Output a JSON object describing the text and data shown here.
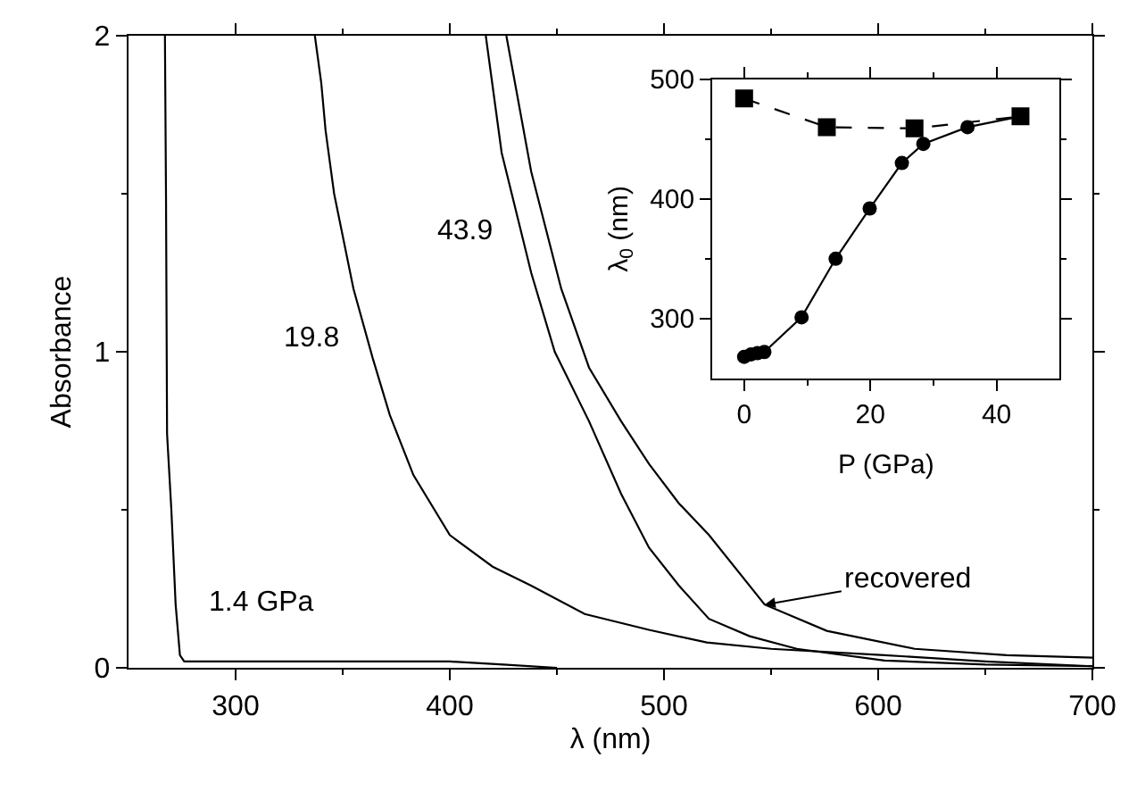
{
  "chart_data": [
    {
      "type": "line",
      "annotations": [
        {
          "text": "recovered",
          "x": 547,
          "y": 0.2
        }
      ],
      "xlabel": "λ (nm)",
      "ylabel": "Absorbance",
      "xlim": [
        250,
        700
      ],
      "xticks": [
        300,
        400,
        500,
        600,
        700
      ],
      "ylim": [
        0,
        2
      ],
      "yticks": [
        0,
        1,
        2
      ],
      "grid": false,
      "legend": false,
      "marker": "none",
      "line_style": "solid",
      "series": [
        {
          "name": "1.4 GPa",
          "color": "#000000",
          "x": [
            267,
            267.5,
            268,
            270,
            272,
            274,
            276,
            290,
            300,
            325,
            350,
            375,
            400,
            425,
            450
          ],
          "values": [
            2.0,
            1.5,
            0.74,
            0.5,
            0.2,
            0.04,
            0.02,
            0.02,
            0.02,
            0.02,
            0.02,
            0.02,
            0.02,
            0.01,
            0.0
          ]
        },
        {
          "name": "19.8",
          "color": "#000000",
          "x": [
            337,
            340,
            342,
            344,
            346,
            355,
            364,
            372,
            383,
            400,
            420,
            438,
            463,
            493,
            520,
            550,
            603,
            650,
            700
          ],
          "values": [
            2.0,
            1.85,
            1.7,
            1.6,
            1.5,
            1.2,
            0.98,
            0.8,
            0.61,
            0.42,
            0.32,
            0.26,
            0.17,
            0.12,
            0.08,
            0.06,
            0.04,
            0.02,
            0.005
          ]
        },
        {
          "name": "43.9",
          "color": "#000000",
          "x": [
            416.8,
            424.2,
            438,
            449,
            465,
            480,
            493,
            507,
            521,
            540,
            562,
            603,
            650,
            700
          ],
          "values": [
            2.0,
            1.63,
            1.25,
            1.0,
            0.78,
            0.55,
            0.38,
            0.26,
            0.155,
            0.1,
            0.06,
            0.023,
            0.01,
            0.005
          ]
        },
        {
          "color": "#000000",
          "x": [
            426.4,
            438,
            452,
            465,
            480,
            493,
            507,
            521,
            547,
            576,
            617,
            660,
            700
          ],
          "values": [
            2.0,
            1.57,
            1.2,
            0.95,
            0.78,
            0.645,
            0.52,
            0.42,
            0.2,
            0.117,
            0.06,
            0.04,
            0.032
          ]
        }
      ]
    },
    {
      "type": "line",
      "xlabel": "P (GPa)",
      "ylabel": "λ$_{0}$ (nm)",
      "xlim": [
        -5,
        50
      ],
      "xticks": [
        0,
        20,
        40
      ],
      "ylim": [
        250,
        500
      ],
      "yticks": [
        300,
        400,
        500
      ],
      "grid": false,
      "legend": false,
      "series": [
        {
          "color": "#000000",
          "marker": "circle",
          "line_style": "solid",
          "x": [
            0,
            1.1,
            2.1,
            3.2,
            9.1,
            14.5,
            19.9,
            25.0,
            28.4,
            35.4,
            43.8
          ],
          "values": [
            268,
            270,
            271,
            272,
            301,
            350,
            392,
            430,
            446,
            460,
            469
          ]
        },
        {
          "color": "#000000",
          "marker": "square",
          "line_style": "dashed",
          "x": [
            0,
            13.1,
            27.0,
            43.8
          ],
          "values": [
            484,
            460,
            459,
            469
          ]
        }
      ]
    }
  ]
}
